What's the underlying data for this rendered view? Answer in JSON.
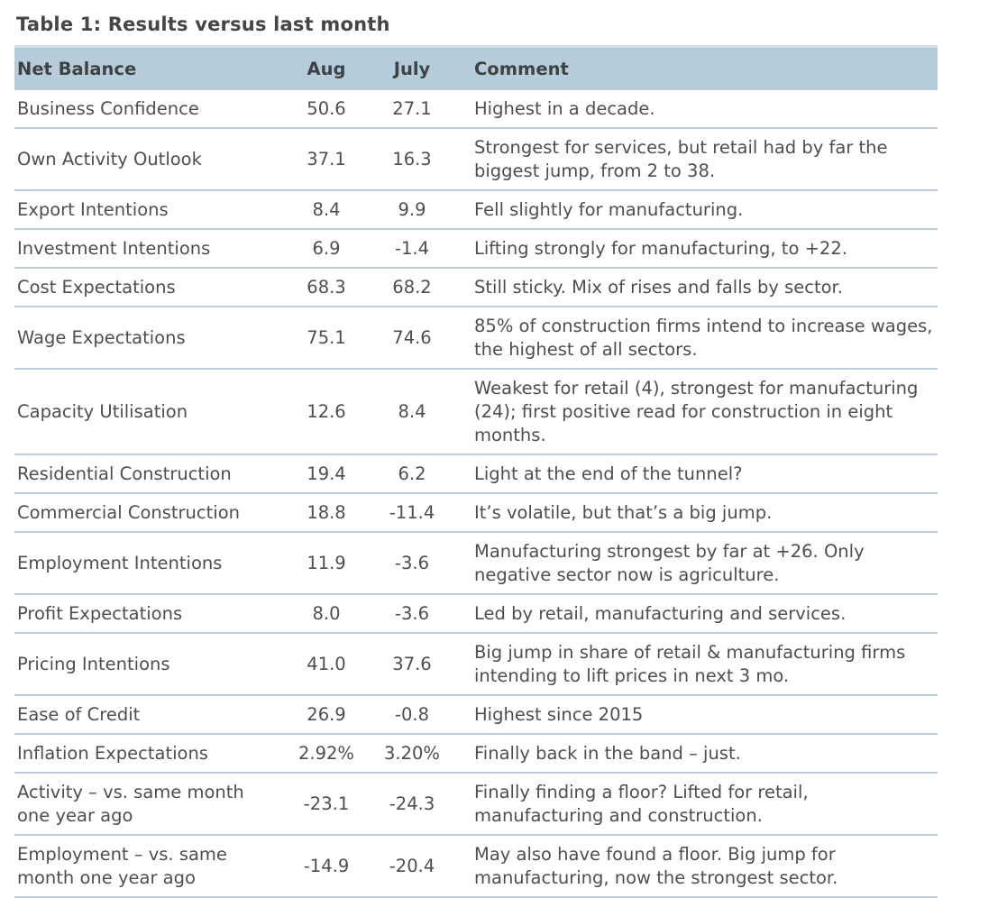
{
  "title": "Table 1: Results versus last month",
  "table": {
    "columns": [
      "Net Balance",
      "Aug",
      "July",
      "Comment"
    ],
    "rows": [
      {
        "name": "Business Confidence",
        "aug": "50.6",
        "july": "27.1",
        "comment": "Highest in a decade."
      },
      {
        "name": "Own Activity Outlook",
        "aug": "37.1",
        "july": "16.3",
        "comment": "Strongest for services, but retail had by far the biggest jump, from 2 to 38."
      },
      {
        "name": "Export Intentions",
        "aug": "8.4",
        "july": "9.9",
        "comment": "Fell slightly for manufacturing."
      },
      {
        "name": "Investment Intentions",
        "aug": "6.9",
        "july": "-1.4",
        "comment": "Lifting strongly for manufacturing, to +22."
      },
      {
        "name": "Cost Expectations",
        "aug": "68.3",
        "july": "68.2",
        "comment": "Still sticky. Mix of rises and falls by sector."
      },
      {
        "name": "Wage Expectations",
        "aug": "75.1",
        "july": "74.6",
        "comment": "85% of construction firms intend to increase wages, the highest of all sectors."
      },
      {
        "name": "Capacity Utilisation",
        "aug": "12.6",
        "july": "8.4",
        "comment": "Weakest for retail (4), strongest for manufacturing (24); first positive read for construction in eight months."
      },
      {
        "name": "Residential Construction",
        "aug": "19.4",
        "july": "6.2",
        "comment": "Light at the end of the tunnel?"
      },
      {
        "name": "Commercial Construction",
        "aug": "18.8",
        "july": "-11.4",
        "comment": "It’s volatile, but that’s a big jump."
      },
      {
        "name": "Employment Intentions",
        "aug": "11.9",
        "july": "-3.6",
        "comment": "Manufacturing strongest by far at +26. Only negative sector now is agriculture."
      },
      {
        "name": "Profit Expectations",
        "aug": "8.0",
        "july": "-3.6",
        "comment": "Led by retail, manufacturing and services."
      },
      {
        "name": "Pricing Intentions",
        "aug": "41.0",
        "july": "37.6",
        "comment": "Big jump in share of retail & manufacturing firms intending to lift prices in next 3 mo."
      },
      {
        "name": "Ease of Credit",
        "aug": "26.9",
        "july": "-0.8",
        "comment": "Highest since 2015"
      },
      {
        "name": "Inflation Expectations",
        "aug": "2.92%",
        "july": "3.20%",
        "comment": "Finally back in the band – just."
      },
      {
        "name": "Activity – vs. same month one year ago",
        "aug": "-23.1",
        "july": "-24.3",
        "comment": "Finally finding a floor? Lifted for retail, manufacturing and construction."
      },
      {
        "name": "Employment – vs. same month one year ago",
        "aug": "-14.9",
        "july": "-20.4",
        "comment": "May also have found a floor. Big jump for manufacturing, now the strongest sector."
      }
    ]
  },
  "colors": {
    "header_bg": "#b7ccda",
    "header_top_stripe": "#cfdfe8",
    "row_divider": "#bccfda",
    "text": "#4d4e50",
    "title_text": "#444547",
    "background": "#ffffff"
  }
}
